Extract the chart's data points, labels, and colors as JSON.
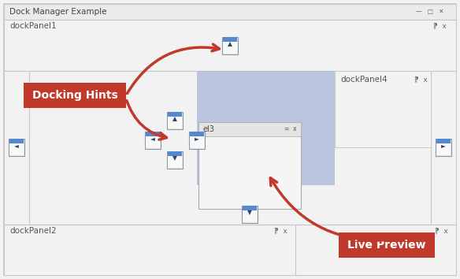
{
  "fig_w": 5.84,
  "fig_h": 3.54,
  "dpi": 100,
  "bg": "#f2f2f2",
  "border": "#c8c8c8",
  "panel_bg": "#f2f2f2",
  "blue": "#b0bedd",
  "title_bar_text": "Dock Manager Example",
  "dp1": "dockPanel1",
  "dp2": "dockPanel2",
  "dp4": "dockPanel4",
  "red": "#c0392b",
  "white": "#ffffff",
  "label_color": "#555555",
  "docking_hints": "Docking Hints",
  "live_preview": "Live Preview",
  "icon_bg": "#ddeeff",
  "icon_border": "#7799bb",
  "icon_strip": "#5588cc",
  "arrow_color": "#c0392b"
}
